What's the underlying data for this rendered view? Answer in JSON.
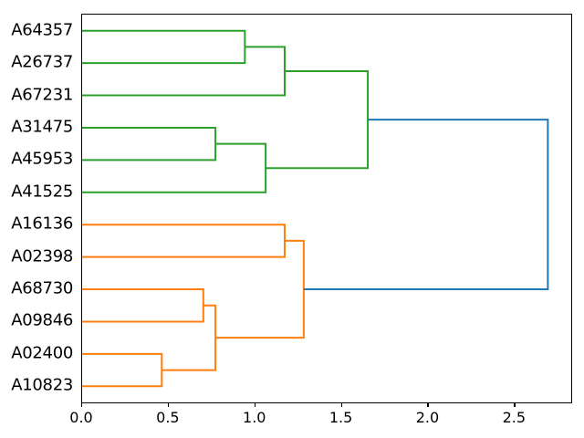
{
  "chart_data": {
    "type": "dendrogram",
    "orientation": "horizontal-right",
    "title": "",
    "xlabel": "",
    "ylabel": "",
    "grid": false,
    "xlim": [
      0,
      2.825
    ],
    "x_tick_values": [
      0,
      0.5,
      1.0,
      1.5,
      2.0,
      2.5
    ],
    "x_tick_labels": [
      "0.0",
      "0.5",
      "1.0",
      "1.5",
      "2.0",
      "2.5"
    ],
    "leaves_top_to_bottom": [
      "A64357",
      "A26737",
      "A67231",
      "A31475",
      "A45953",
      "A41525",
      "A16136",
      "A02398",
      "A68730",
      "A09846",
      "A02400",
      "A10823"
    ],
    "colors": {
      "above_threshold_link": "#1f77b4",
      "cluster_green": "#2ca02c",
      "cluster_orange": "#ff7f0e",
      "axis": "#000000",
      "text": "#000000"
    },
    "line_width": 2,
    "linkage_tree": {
      "d": 2.69,
      "color": "#1f77b4",
      "children": [
        {
          "d": 1.65,
          "color": "#2ca02c",
          "children": [
            {
              "d": 1.17,
              "color": "#2ca02c",
              "children": [
                {
                  "d": 0.94,
                  "color": "#2ca02c",
                  "children": [
                    "A64357",
                    "A26737"
                  ]
                },
                "A67231"
              ]
            },
            {
              "d": 1.06,
              "color": "#2ca02c",
              "children": [
                {
                  "d": 0.77,
                  "color": "#2ca02c",
                  "children": [
                    "A31475",
                    "A45953"
                  ]
                },
                "A41525"
              ]
            }
          ]
        },
        {
          "d": 1.28,
          "color": "#ff7f0e",
          "children": [
            {
              "d": 1.17,
              "color": "#ff7f0e",
              "children": [
                "A16136",
                "A02398"
              ]
            },
            {
              "d": 0.77,
              "color": "#ff7f0e",
              "children": [
                {
                  "d": 0.7,
                  "color": "#ff7f0e",
                  "children": [
                    "A68730",
                    "A09846"
                  ]
                },
                {
                  "d": 0.46,
                  "color": "#ff7f0e",
                  "children": [
                    "A02400",
                    "A10823"
                  ]
                }
              ]
            }
          ]
        }
      ]
    }
  }
}
